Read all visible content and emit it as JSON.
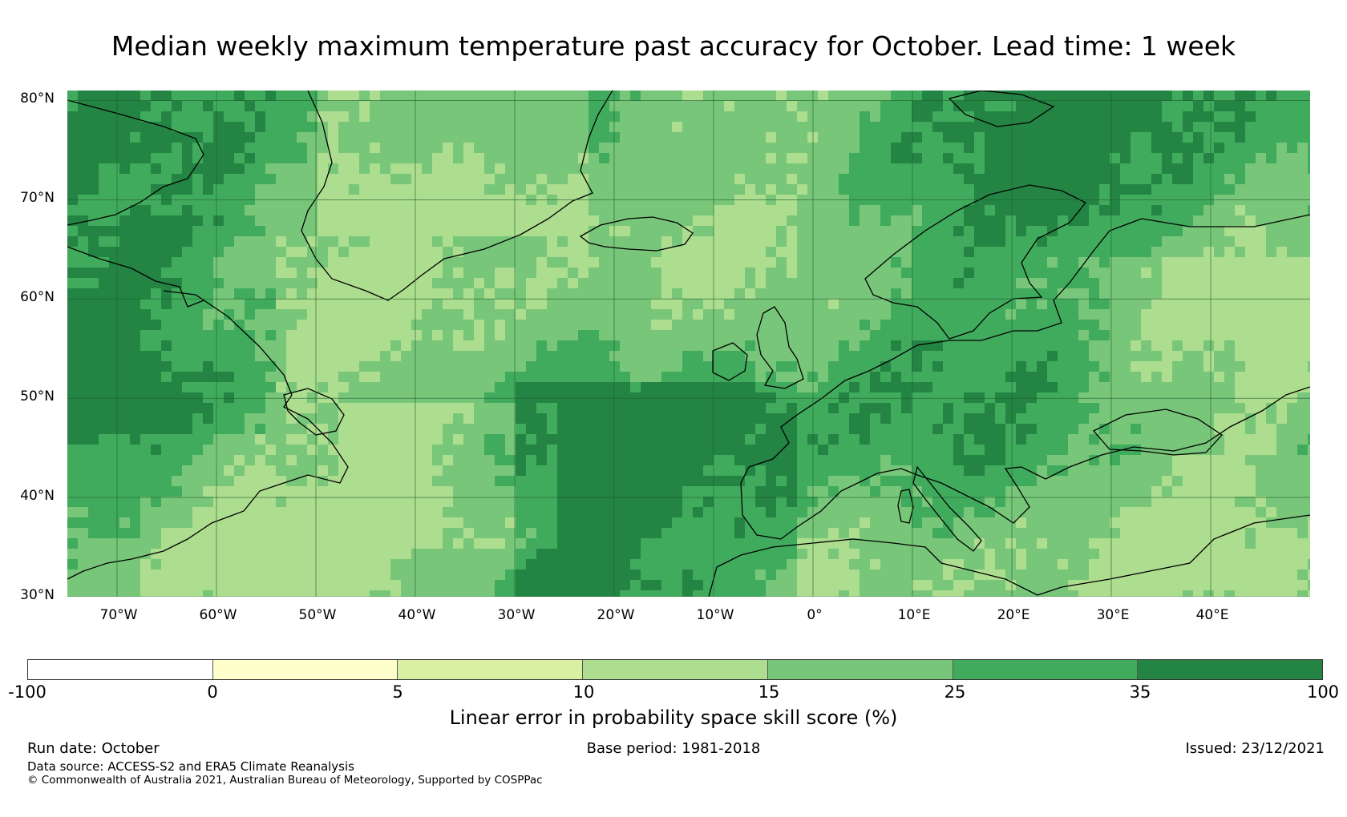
{
  "title": "Median weekly maximum temperature past accuracy for October. Lead time: 1 week",
  "map": {
    "lat_labels": [
      "80°N",
      "70°N",
      "60°N",
      "50°N",
      "40°N",
      "30°N"
    ],
    "lon_labels": [
      "70°W",
      "60°W",
      "50°W",
      "40°W",
      "30°W",
      "20°W",
      "10°W",
      "0°",
      "10°E",
      "20°E",
      "30°E",
      "40°E"
    ],
    "lat_range": [
      30,
      81
    ],
    "lon_range": [
      -75,
      50
    ]
  },
  "colorbar": {
    "ticks": [
      "-100",
      "0",
      "5",
      "10",
      "15",
      "25",
      "35",
      "100"
    ],
    "colors": [
      "#ffffff",
      "#ffffcc",
      "#d9f0a3",
      "#addd8e",
      "#78c679",
      "#41ab5d",
      "#238443"
    ],
    "label": "Linear error in probability space skill score (%)"
  },
  "footer": {
    "run_date": "Run date: October",
    "base_period": "Base period: 1981-2018",
    "issued": "Issued: 23/12/2021",
    "data_source": "Data source: ACCESS-S2 and ERA5 Climate Reanalysis",
    "copyright": "© Commonwealth of Australia 2021, Australian Bureau of Meteorology, Supported by COSPPac"
  }
}
